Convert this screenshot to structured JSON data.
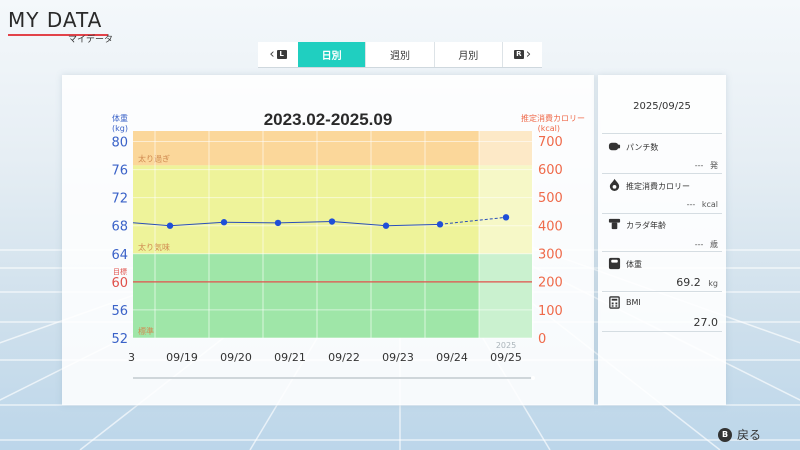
{
  "header": {
    "title": "MY DATA",
    "subtitle": "マイデータ"
  },
  "tabs": {
    "prev_button_glyph": "L",
    "next_button_glyph": "R",
    "items": [
      {
        "label": "日別",
        "active": true
      },
      {
        "label": "週別",
        "active": false
      },
      {
        "label": "月別",
        "active": false
      }
    ]
  },
  "main": {
    "date_range": "2023.02-2025.09"
  },
  "chart_data": {
    "type": "line",
    "title": "2023.02-2025.09",
    "left_axis": {
      "label_line1": "体重",
      "label_line2": "(kg)",
      "ticks": [
        "80",
        "76",
        "72",
        "68",
        "64",
        "60",
        "56",
        "52"
      ],
      "range": [
        52,
        81.5
      ],
      "color": "#3a62c8"
    },
    "right_axis": {
      "label_line1": "推定消費カロリー",
      "label_line2": "(kcal)",
      "ticks": [
        "700",
        "600",
        "500",
        "400",
        "300",
        "200",
        "100",
        "0"
      ],
      "range": [
        0,
        735
      ],
      "color": "#ef6a4a"
    },
    "categories": [
      "09/19",
      "09/20",
      "09/21",
      "09/22",
      "09/23",
      "09/24",
      "09/25"
    ],
    "left_cut_label": "3",
    "year_label": "2025",
    "year_label_index": 6,
    "series": [
      {
        "values": [
          68.0,
          68.5,
          68.4,
          68.6,
          68.0,
          68.2,
          69.2
        ],
        "dashed_last_segment": true,
        "color": "#1f4fd8"
      }
    ],
    "bands": [
      {
        "label": "太り過ぎ",
        "from": 76.6,
        "to": 81.5,
        "color": "#fbd79a"
      },
      {
        "label": "太り気味",
        "from": 64.0,
        "to": 76.6,
        "color": "#eef39a"
      },
      {
        "label": "標準",
        "from": 52,
        "to": 64.0,
        "color": "#9fe6a8"
      }
    ],
    "goal": {
      "label": "目標",
      "value": 60,
      "color": "#e0504a"
    },
    "grid": true
  },
  "summary": {
    "date": "2025/09/25",
    "items": [
      {
        "icon": "punch-icon",
        "label": "パンチ数",
        "value": "---",
        "unit": "発"
      },
      {
        "icon": "flame-icon",
        "label": "推定消費カロリー",
        "value": "---",
        "unit": "kcal"
      },
      {
        "icon": "muscle-icon",
        "label": "カラダ年齢",
        "value": "---",
        "unit": "歳"
      },
      {
        "icon": "scale-icon",
        "label": "体重",
        "value": "69.2",
        "unit": "kg"
      },
      {
        "icon": "calculator-icon",
        "label": "BMI",
        "value": "27.0",
        "unit": ""
      }
    ]
  },
  "footer": {
    "back_glyph": "B",
    "back_label": "戻る"
  }
}
